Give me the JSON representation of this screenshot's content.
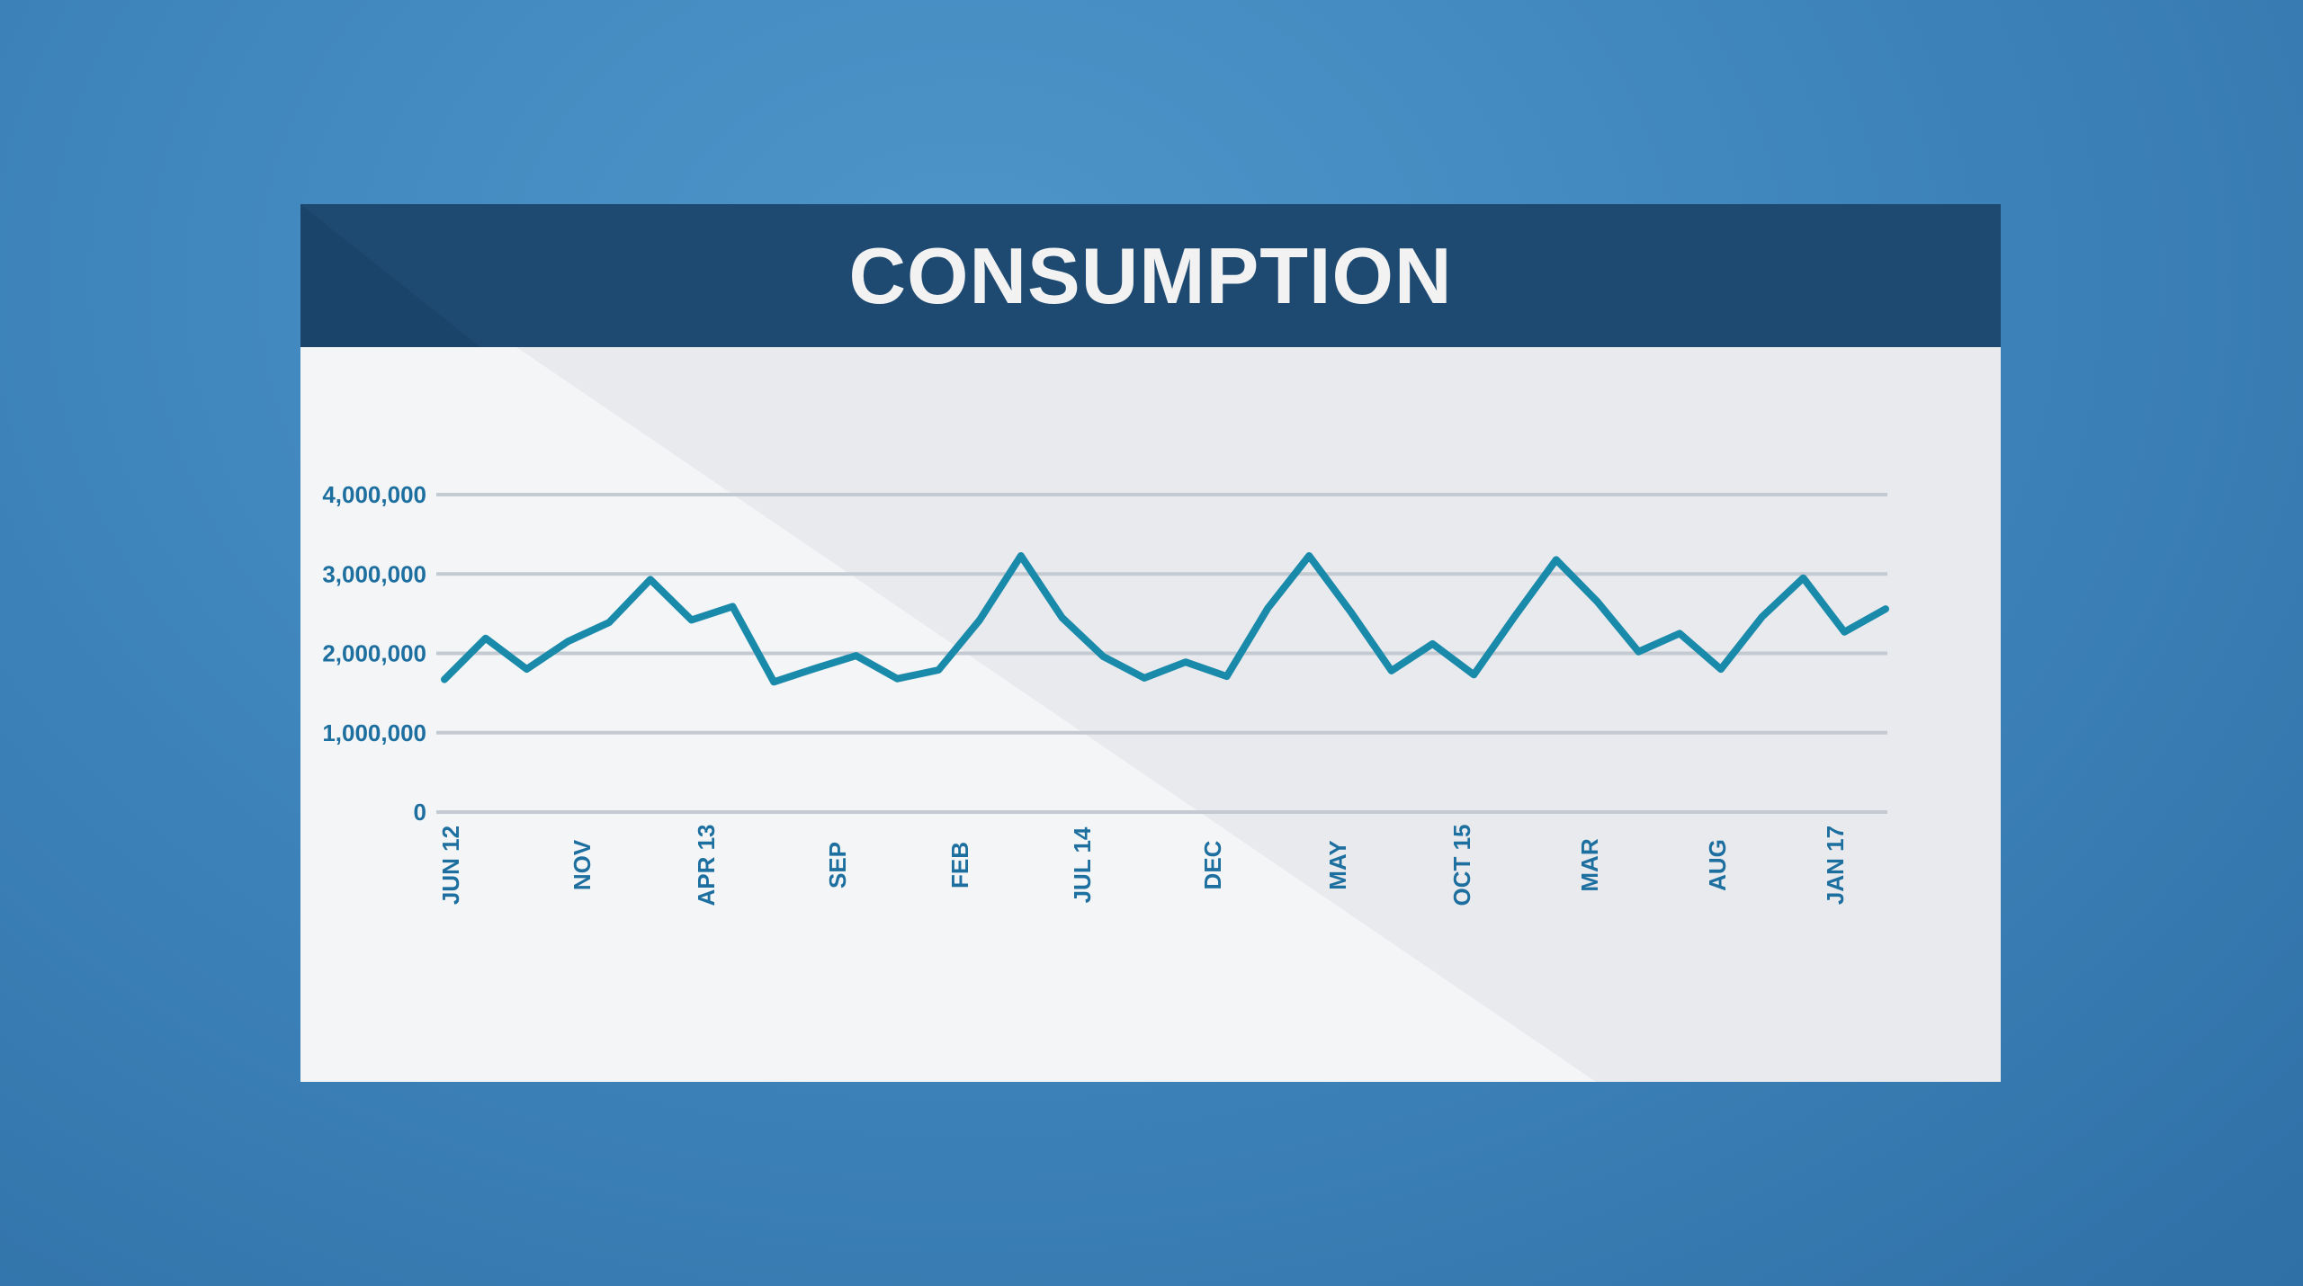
{
  "chart_data": {
    "type": "line",
    "title": "CONSUMPTION",
    "xlabel": "",
    "ylabel": "",
    "ylim": [
      0,
      4000000
    ],
    "y_ticks": [
      0,
      1000000,
      2000000,
      3000000,
      4000000
    ],
    "y_tick_labels": [
      "0",
      "1,000,000",
      "2,000,000",
      "3,000,000",
      "4,000,000"
    ],
    "x_tick_labels": [
      "JUN 12",
      "NOV",
      "APR 13",
      "SEP",
      "FEB",
      "JUL 14",
      "DEC",
      "MAY",
      "OCT 15",
      "MAR",
      "AUG",
      "JAN 17"
    ],
    "grid": true,
    "line_color": "#1a8aab",
    "series": [
      {
        "values": [
          1670000,
          2190000,
          1800000,
          2150000,
          2390000,
          2930000,
          2420000,
          2590000,
          1640000,
          1810000,
          1970000,
          1680000,
          1790000,
          2420000,
          3230000,
          2450000,
          1960000,
          1690000,
          1890000,
          1710000,
          2570000,
          3230000,
          2530000,
          1780000,
          2120000,
          1730000,
          2470000,
          3180000,
          2650000,
          2020000,
          2250000,
          1800000,
          2460000,
          2950000,
          2270000,
          2560000
        ]
      }
    ]
  }
}
